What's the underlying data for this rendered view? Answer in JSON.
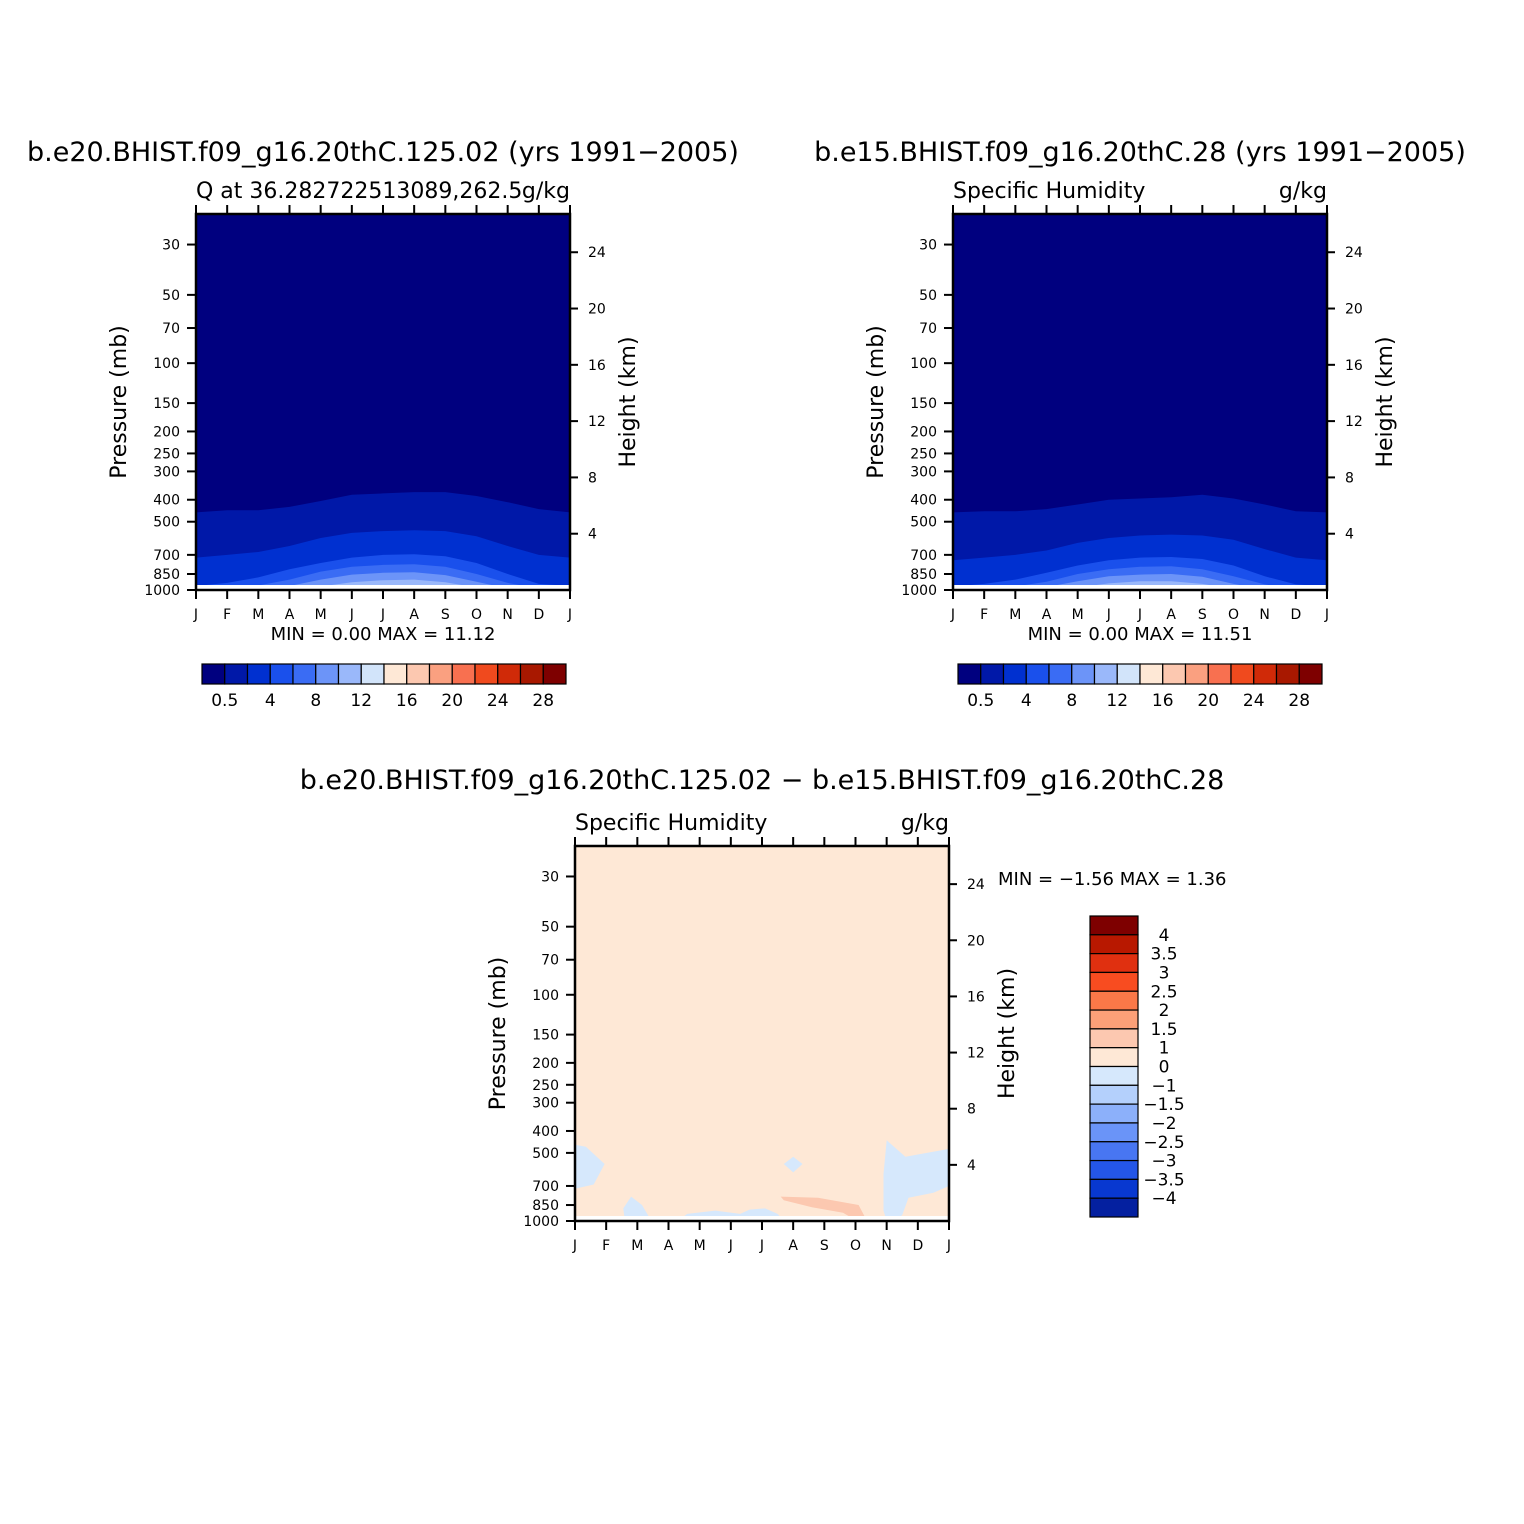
{
  "chart_data": [
    {
      "type": "heatmap",
      "title": "b.e20.BHIST.f09_g16.20thC.125.02 (yrs 1991−2005)",
      "subtitle_left": "Q at 36.282722513089,262.5",
      "subtitle_right": "g/kg",
      "ylabel": "Pressure (mb)",
      "ylabel_right": "Height (km)",
      "x_ticks": [
        "J",
        "F",
        "M",
        "A",
        "M",
        "J",
        "J",
        "A",
        "S",
        "O",
        "N",
        "D",
        "J"
      ],
      "y_ticks": [
        "30",
        "50",
        "70",
        "100",
        "150",
        "200",
        "250",
        "300",
        "400",
        "500",
        "700",
        "850",
        "1000"
      ],
      "y_values": [
        30,
        50,
        70,
        100,
        150,
        200,
        250,
        300,
        400,
        500,
        700,
        850,
        1000
      ],
      "y_right_ticks": [
        "24",
        "20",
        "16",
        "12",
        "8",
        "4"
      ],
      "y_right_values": [
        24,
        20,
        16,
        12,
        8,
        4
      ],
      "ylim": [
        1000,
        22
      ],
      "stats": {
        "min_label": "MIN =",
        "min": "0.00",
        "max_label": "MAX =",
        "max": "11.12"
      },
      "colorbar": {
        "orientation": "horizontal",
        "colors": [
          "#00007f",
          "#0018a8",
          "#0030d0",
          "#1a50ec",
          "#3a6cf4",
          "#6c94f8",
          "#9ab8fa",
          "#d2e4fa",
          "#fee8d6",
          "#fcc8b0",
          "#faa080",
          "#f87050",
          "#f04a1e",
          "#d02a08",
          "#a81800",
          "#7e0000"
        ],
        "labels": [
          "0.5",
          "4",
          "8",
          "12",
          "16",
          "20",
          "24",
          "28"
        ],
        "label_boundaries": [
          1,
          3,
          5,
          7,
          9,
          11,
          13,
          15
        ]
      },
      "contours": [
        {
          "level": 0.5,
          "color": "#0018a8",
          "top_mb": [
            455,
            445,
            445,
            430,
            405,
            380,
            375,
            370,
            370,
            385,
            410,
            440,
            455
          ]
        },
        {
          "level": 2,
          "color": "#0030d0",
          "top_mb": [
            720,
            700,
            680,
            640,
            590,
            560,
            550,
            545,
            550,
            580,
            640,
            700,
            720
          ]
        },
        {
          "level": 4,
          "color": "#1a50ec",
          "top_mb": [
            960,
            930,
            880,
            810,
            760,
            720,
            700,
            695,
            710,
            760,
            850,
            940,
            960
          ]
        },
        {
          "level": 6,
          "color": "#3a6cf4",
          "top_mb": [
            990,
            985,
            955,
            900,
            830,
            790,
            775,
            770,
            790,
            850,
            930,
            985,
            990
          ]
        },
        {
          "level": 8,
          "color": "#6c94f8",
          "top_mb": [
            1000,
            1000,
            990,
            960,
            900,
            855,
            840,
            835,
            860,
            920,
            985,
            1000,
            1000
          ]
        },
        {
          "level": 10,
          "color": "#9ab8fa",
          "top_mb": [
            1000,
            1000,
            1000,
            1000,
            965,
            925,
            905,
            900,
            925,
            975,
            1000,
            1000,
            1000
          ]
        },
        {
          "level": 11,
          "color": "#d2e4fa",
          "top_mb": [
            1000,
            1000,
            1000,
            1000,
            1000,
            975,
            965,
            965,
            985,
            1000,
            1000,
            1000,
            1000
          ]
        }
      ]
    },
    {
      "type": "heatmap",
      "title": "b.e15.BHIST.f09_g16.20thC.28 (yrs 1991−2005)",
      "subtitle_left": "Specific Humidity",
      "subtitle_right": "g/kg",
      "ylabel": "Pressure (mb)",
      "ylabel_right": "Height (km)",
      "x_ticks": [
        "J",
        "F",
        "M",
        "A",
        "M",
        "J",
        "J",
        "A",
        "S",
        "O",
        "N",
        "D",
        "J"
      ],
      "y_ticks": [
        "30",
        "50",
        "70",
        "100",
        "150",
        "200",
        "250",
        "300",
        "400",
        "500",
        "700",
        "850",
        "1000"
      ],
      "y_values": [
        30,
        50,
        70,
        100,
        150,
        200,
        250,
        300,
        400,
        500,
        700,
        850,
        1000
      ],
      "y_right_ticks": [
        "24",
        "20",
        "16",
        "12",
        "8",
        "4"
      ],
      "y_right_values": [
        24,
        20,
        16,
        12,
        8,
        4
      ],
      "ylim": [
        1000,
        22
      ],
      "stats": {
        "min_label": "MIN =",
        "min": "0.00",
        "max_label": "MAX =",
        "max": "11.51"
      },
      "colorbar": {
        "orientation": "horizontal",
        "colors": [
          "#00007f",
          "#0018a8",
          "#0030d0",
          "#1a50ec",
          "#3a6cf4",
          "#6c94f8",
          "#9ab8fa",
          "#d2e4fa",
          "#fee8d6",
          "#fcc8b0",
          "#faa080",
          "#f87050",
          "#f04a1e",
          "#d02a08",
          "#a81800",
          "#7e0000"
        ],
        "labels": [
          "0.5",
          "4",
          "8",
          "12",
          "16",
          "20",
          "24",
          "28"
        ],
        "label_boundaries": [
          1,
          3,
          5,
          7,
          9,
          11,
          13,
          15
        ]
      },
      "contours": [
        {
          "level": 0.5,
          "color": "#0018a8",
          "top_mb": [
            455,
            450,
            450,
            440,
            420,
            400,
            395,
            390,
            380,
            395,
            420,
            450,
            455
          ]
        },
        {
          "level": 2,
          "color": "#0030d0",
          "top_mb": [
            740,
            720,
            700,
            670,
            620,
            590,
            575,
            570,
            575,
            600,
            660,
            720,
            740
          ]
        },
        {
          "level": 4,
          "color": "#1a50ec",
          "top_mb": [
            965,
            940,
            900,
            840,
            780,
            740,
            720,
            715,
            730,
            780,
            870,
            945,
            965
          ]
        },
        {
          "level": 6,
          "color": "#3a6cf4",
          "top_mb": [
            995,
            990,
            965,
            920,
            850,
            810,
            790,
            785,
            810,
            870,
            945,
            990,
            995
          ]
        },
        {
          "level": 8,
          "color": "#6c94f8",
          "top_mb": [
            1000,
            1000,
            995,
            970,
            915,
            870,
            855,
            850,
            875,
            940,
            995,
            1000,
            1000
          ]
        },
        {
          "level": 10,
          "color": "#9ab8fa",
          "top_mb": [
            1000,
            1000,
            1000,
            1000,
            975,
            935,
            915,
            915,
            940,
            990,
            1000,
            1000,
            1000
          ]
        },
        {
          "level": 11,
          "color": "#d2e4fa",
          "top_mb": [
            1000,
            1000,
            1000,
            1000,
            1000,
            980,
            970,
            970,
            990,
            1000,
            1000,
            1000,
            1000
          ]
        }
      ]
    },
    {
      "type": "heatmap",
      "title": "b.e20.BHIST.f09_g16.20thC.125.02 − b.e15.BHIST.f09_g16.20thC.28",
      "subtitle_left": "Specific Humidity",
      "subtitle_right": "g/kg",
      "ylabel": "Pressure (mb)",
      "ylabel_right": "Height (km)",
      "x_ticks": [
        "J",
        "F",
        "M",
        "A",
        "M",
        "J",
        "J",
        "A",
        "S",
        "O",
        "N",
        "D",
        "J"
      ],
      "y_ticks": [
        "30",
        "50",
        "70",
        "100",
        "150",
        "200",
        "250",
        "300",
        "400",
        "500",
        "700",
        "850",
        "1000"
      ],
      "y_values": [
        30,
        50,
        70,
        100,
        150,
        200,
        250,
        300,
        400,
        500,
        700,
        850,
        1000
      ],
      "y_right_ticks": [
        "24",
        "20",
        "16",
        "12",
        "8",
        "4"
      ],
      "y_right_values": [
        24,
        20,
        16,
        12,
        8,
        4
      ],
      "ylim": [
        1000,
        22
      ],
      "stats": {
        "min_label": "MIN =",
        "min": "−1.56",
        "max_label": "MAX =",
        "max": "1.36"
      },
      "background_color": "#fee8d6",
      "colorbar": {
        "orientation": "vertical",
        "colors_top_to_bottom": [
          "#7e0000",
          "#b81800",
          "#e03010",
          "#f84c20",
          "#fa7848",
          "#fca078",
          "#fcc8b0",
          "#fee8d6",
          "#d6e8fc",
          "#b4d0fc",
          "#8cb0fa",
          "#6a94f8",
          "#4876f2",
          "#2456e8",
          "#0838d0",
          "#0420a0"
        ],
        "labels_top_to_bottom": [
          "4",
          "3.5",
          "3",
          "2.5",
          "2",
          "1.5",
          "1",
          "0",
          "−1",
          "−1.5",
          "−2",
          "−2.5",
          "−3",
          "−3.5",
          "−4"
        ]
      },
      "patches": [
        {
          "color": "#d6e8fc",
          "points": [
            [
              0,
              460
            ],
            [
              0.35,
              470
            ],
            [
              0.95,
              560
            ],
            [
              0.6,
              690
            ],
            [
              0,
              720
            ]
          ]
        },
        {
          "color": "#d6e8fc",
          "points": [
            [
              1.6,
              1000
            ],
            [
              1.55,
              880
            ],
            [
              1.8,
              780
            ],
            [
              2.15,
              850
            ],
            [
              2.45,
              1000
            ]
          ]
        },
        {
          "color": "#d6e8fc",
          "points": [
            [
              3.3,
              1000
            ],
            [
              3.6,
              930
            ],
            [
              4.5,
              900
            ],
            [
              5.3,
              930
            ],
            [
              5.6,
              890
            ],
            [
              6.1,
              880
            ],
            [
              6.5,
              930
            ],
            [
              6.7,
              1000
            ]
          ]
        },
        {
          "color": "#b4d0fc",
          "points": [
            [
              5.8,
              1000
            ],
            [
              6.0,
              960
            ],
            [
              6.3,
              955
            ],
            [
              6.5,
              1000
            ]
          ]
        },
        {
          "color": "#d6e8fc",
          "points": [
            [
              6.7,
              560
            ],
            [
              7.0,
              520
            ],
            [
              7.3,
              560
            ],
            [
              7.0,
              610
            ]
          ]
        },
        {
          "color": "#fcc8b0",
          "points": [
            [
              6.6,
              780
            ],
            [
              7.8,
              790
            ],
            [
              9.1,
              850
            ],
            [
              9.3,
              960
            ],
            [
              9.3,
              1000
            ],
            [
              9.05,
              1000
            ],
            [
              8.6,
              920
            ],
            [
              7.6,
              870
            ],
            [
              6.7,
              810
            ]
          ]
        },
        {
          "color": "#d6e8fc",
          "points": [
            [
              10.0,
              1000
            ],
            [
              9.9,
              900
            ],
            [
              9.9,
              620
            ],
            [
              10.0,
              440
            ],
            [
              10.6,
              520
            ],
            [
              12.0,
              480
            ],
            [
              12.0,
              700
            ],
            [
              11.5,
              750
            ],
            [
              10.7,
              790
            ],
            [
              10.5,
              940
            ],
            [
              10.3,
              1000
            ]
          ]
        }
      ]
    }
  ]
}
